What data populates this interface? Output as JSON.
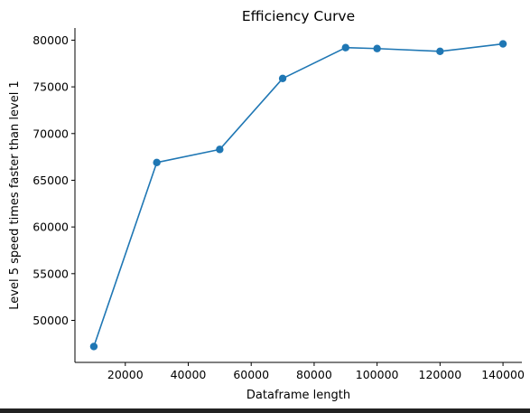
{
  "chart_data": {
    "type": "line",
    "title": "Efficiency Curve",
    "xlabel": "Dataframe length",
    "ylabel": "Level 5 speed times faster than level 1",
    "xlim": [
      4000,
      146000
    ],
    "ylim": [
      45500,
      81300
    ],
    "xticks": [
      20000,
      40000,
      60000,
      80000,
      100000,
      120000,
      140000
    ],
    "yticks": [
      50000,
      55000,
      60000,
      65000,
      70000,
      75000,
      80000
    ],
    "grid": false,
    "markers": true,
    "series": [
      {
        "x": [
          10000,
          30000,
          50000,
          70000,
          90000,
          100000,
          120000,
          140000
        ],
        "y": [
          47200,
          66900,
          68300,
          75900,
          79200,
          79100,
          78800,
          79600
        ],
        "color": "#1f77b4"
      }
    ]
  }
}
